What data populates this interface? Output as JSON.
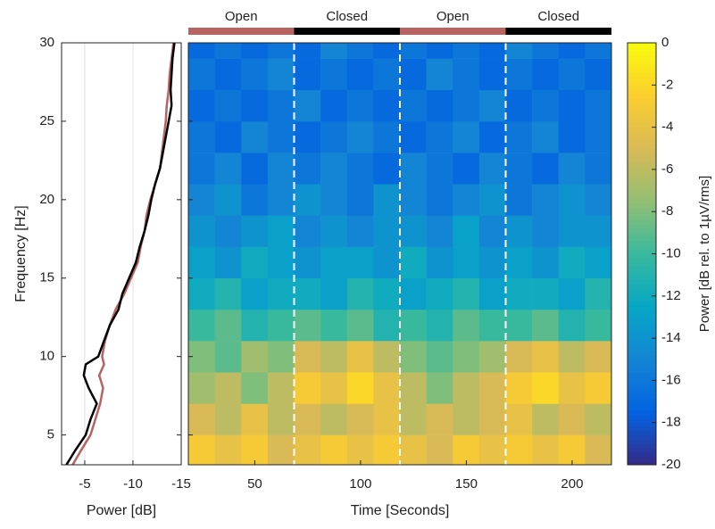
{
  "chart_data": [
    {
      "type": "line",
      "xlabel": "Power [dB]",
      "ylabel": "Frequency [Hz]",
      "xlim": [
        -2.6,
        -15
      ],
      "xticks": [
        -5,
        -10,
        -15
      ],
      "ylim": [
        3.1,
        30
      ],
      "yticks": [
        5,
        10,
        15,
        20,
        25,
        30
      ],
      "grid": true,
      "y": [
        3.1,
        4,
        5,
        6,
        7,
        8,
        8.8,
        9.5,
        10,
        11,
        12,
        13,
        14,
        15,
        16,
        17,
        18,
        19,
        20,
        21,
        22,
        23,
        24,
        25,
        26,
        27,
        28,
        29,
        30
      ],
      "series": [
        {
          "color": "#b86262",
          "values": [
            -3.75,
            -4.6,
            -5.6,
            -6.1,
            -6.6,
            -6.9,
            -6.5,
            -7,
            -6.8,
            -7.1,
            -7.6,
            -8.2,
            -9.1,
            -9.8,
            -10.5,
            -10.8,
            -11.2,
            -11.4,
            -11.8,
            -12.3,
            -12.8,
            -13,
            -13.2,
            -13.4,
            -13.5,
            -13.7,
            -13.8,
            -14,
            -14.2
          ]
        },
        {
          "color": "#000000",
          "values": [
            -3.1,
            -4,
            -5.1,
            -5.6,
            -6.25,
            -5.4,
            -4.9,
            -5.1,
            -6.4,
            -7,
            -7.6,
            -8.5,
            -8.9,
            -9.6,
            -10.3,
            -10.7,
            -11.2,
            -11.6,
            -11.9,
            -12.3,
            -12.8,
            -13.1,
            -13.4,
            -13.7,
            -14,
            -13.9,
            -14,
            -14.1,
            -14.3
          ]
        }
      ]
    },
    {
      "type": "heatmap",
      "xlabel": "Time [Seconds]",
      "xlim": [
        18.6,
        218.6
      ],
      "xticks": [
        50,
        100,
        150,
        200
      ],
      "ylim": [
        3.1,
        30
      ],
      "yticks": [
        5,
        10,
        15,
        20,
        25,
        30
      ],
      "time_edges": [
        18.6,
        31.1,
        43.6,
        56.1,
        68.6,
        81.1,
        93.6,
        106.1,
        118.6,
        131.1,
        143.6,
        156.1,
        168.6,
        181.1,
        193.6,
        206.1,
        218.6
      ],
      "freq_edges": [
        3.1,
        5,
        7,
        9,
        11,
        13,
        15,
        17,
        19,
        21,
        23,
        25,
        27,
        29,
        30
      ],
      "power": [
        [
          -3,
          -4,
          -3,
          -5,
          -4,
          -3,
          -4,
          -3,
          -4,
          -5,
          -3,
          -4,
          -3,
          -4,
          -3,
          -5
        ],
        [
          -5,
          -6,
          -4,
          -6,
          -5,
          -6,
          -5,
          -4,
          -6,
          -5,
          -6,
          -5,
          -4,
          -6,
          -5,
          -6
        ],
        [
          -7,
          -6,
          -8,
          -6,
          -3,
          -4,
          -2,
          -4,
          -6,
          -8,
          -6,
          -5,
          -3,
          -2,
          -4,
          -3
        ],
        [
          -8,
          -9,
          -7,
          -8,
          -5,
          -6,
          -4,
          -6,
          -8,
          -9,
          -8,
          -7,
          -5,
          -4,
          -6,
          -5
        ],
        [
          -10,
          -9,
          -11,
          -10,
          -9,
          -10,
          -9,
          -11,
          -10,
          -11,
          -9,
          -10,
          -10,
          -9,
          -11,
          -10
        ],
        [
          -12,
          -11,
          -13,
          -12,
          -12,
          -13,
          -11,
          -12,
          -13,
          -12,
          -11,
          -13,
          -12,
          -12,
          -13,
          -11
        ],
        [
          -13,
          -14,
          -12,
          -13,
          -14,
          -13,
          -13,
          -14,
          -12,
          -14,
          -13,
          -14,
          -13,
          -14,
          -12,
          -13
        ],
        [
          -14,
          -15,
          -14,
          -13,
          -15,
          -14,
          -15,
          -14,
          -14,
          -15,
          -13,
          -15,
          -14,
          -15,
          -14,
          -14
        ],
        [
          -15,
          -14,
          -16,
          -15,
          -14,
          -15,
          -16,
          -14,
          -15,
          -16,
          -15,
          -14,
          -16,
          -15,
          -14,
          -15
        ],
        [
          -16,
          -15,
          -17,
          -15,
          -16,
          -15,
          -16,
          -17,
          -15,
          -16,
          -17,
          -15,
          -16,
          -17,
          -15,
          -16
        ],
        [
          -16,
          -17,
          -15,
          -16,
          -17,
          -16,
          -15,
          -16,
          -17,
          -16,
          -15,
          -17,
          -16,
          -15,
          -17,
          -16
        ],
        [
          -17,
          -16,
          -17,
          -16,
          -15,
          -17,
          -16,
          -17,
          -16,
          -17,
          -16,
          -15,
          -17,
          -16,
          -17,
          -16
        ],
        [
          -16,
          -17,
          -16,
          -15,
          -17,
          -16,
          -17,
          -16,
          -17,
          -15,
          -16,
          -17,
          -16,
          -17,
          -16,
          -17
        ],
        [
          -17,
          -16,
          -17,
          -16,
          -17,
          -15,
          -16,
          -17,
          -16,
          -17,
          -16,
          -17,
          -15,
          -16,
          -17,
          -16
        ]
      ],
      "segments": [
        {
          "label": "Open",
          "start": 18.6,
          "end": 68.6,
          "color": "#b86262"
        },
        {
          "label": "Closed",
          "start": 68.6,
          "end": 118.6,
          "color": "#000000"
        },
        {
          "label": "Open",
          "start": 118.6,
          "end": 168.6,
          "color": "#b86262"
        },
        {
          "label": "Closed",
          "start": 168.6,
          "end": 218.6,
          "color": "#000000"
        }
      ],
      "clim": [
        -20,
        0
      ],
      "cticks": [
        0,
        -2,
        -4,
        -6,
        -8,
        -10,
        -12,
        -14,
        -16,
        -18,
        -20
      ],
      "clabel": "Power [dB rel. to 1µV/rms]",
      "colormap": [
        "#352a87",
        "#0363e1",
        "#1485d4",
        "#06a7c6",
        "#38b99e",
        "#92bf73",
        "#d9ba56",
        "#fcce2e",
        "#f9fb0e"
      ]
    }
  ]
}
